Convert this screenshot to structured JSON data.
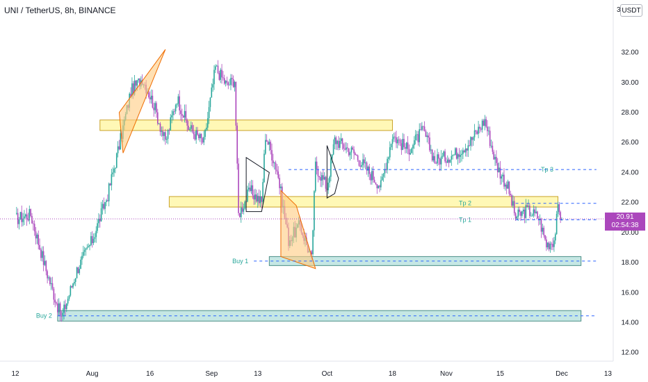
{
  "header": {
    "title": "UNI / TetherUS, 8h, BINANCE"
  },
  "price_scale": {
    "currency": "USDT",
    "prefix": "3"
  },
  "last_price": {
    "value": "20.91",
    "countdown": "02:54:38"
  },
  "colors": {
    "bull": "#26a69a",
    "bear": "#ab47bc",
    "zone_yellow": "#fff59d",
    "zone_teal": "#b2dfdb",
    "target_line": "#2962ff",
    "triangle_fill": "#ffcc80",
    "triangle_stroke": "#ef6c00"
  },
  "chart_data": {
    "type": "candlestick",
    "y_range": [
      11.8,
      34.2
    ],
    "y_ticks": [
      "32.00",
      "30.00",
      "28.00",
      "26.00",
      "24.00",
      "22.00",
      "20.00",
      "18.00",
      "16.00",
      "14.00",
      "12.00"
    ],
    "x_tick_labels": [
      "12",
      "Aug",
      "16",
      "Sep",
      "13",
      "Oct",
      "18",
      "Nov",
      "15",
      "Dec",
      "13"
    ],
    "anchors": [
      {
        "date": "Jul 12",
        "price": 20.9
      },
      {
        "date": "Jul 16",
        "price": 21.2
      },
      {
        "date": "Jul 20",
        "price": 17.5
      },
      {
        "date": "Jul 24",
        "price": 14.3
      },
      {
        "date": "Jul 28",
        "price": 17.5
      },
      {
        "date": "Aug 1",
        "price": 19.5
      },
      {
        "date": "Aug 5",
        "price": 22.5
      },
      {
        "date": "Aug 8",
        "price": 25.8
      },
      {
        "date": "Aug 11",
        "price": 29.4
      },
      {
        "date": "Aug 14",
        "price": 30.3
      },
      {
        "date": "Aug 17",
        "price": 28.5
      },
      {
        "date": "Aug 20",
        "price": 26.0
      },
      {
        "date": "Aug 23",
        "price": 29.0
      },
      {
        "date": "Aug 26",
        "price": 27.0
      },
      {
        "date": "Aug 30",
        "price": 26.0
      },
      {
        "date": "Sep 2",
        "price": 31.0
      },
      {
        "date": "Sep 5",
        "price": 29.8
      },
      {
        "date": "Sep 7",
        "price": 30.2
      },
      {
        "date": "Sep 8",
        "price": 21.2
      },
      {
        "date": "Sep 11",
        "price": 22.8
      },
      {
        "date": "Sep 14",
        "price": 22.0
      },
      {
        "date": "Sep 15",
        "price": 26.5
      },
      {
        "date": "Sep 18",
        "price": 24.2
      },
      {
        "date": "Sep 21",
        "price": 19.5
      },
      {
        "date": "Sep 24",
        "price": 20.5
      },
      {
        "date": "Sep 27",
        "price": 18.2
      },
      {
        "date": "Sep 28",
        "price": 24.5
      },
      {
        "date": "Oct 1",
        "price": 23.0
      },
      {
        "date": "Oct 3",
        "price": 26.2
      },
      {
        "date": "Oct 8",
        "price": 25.3
      },
      {
        "date": "Oct 12",
        "price": 24.0
      },
      {
        "date": "Oct 15",
        "price": 23.1
      },
      {
        "date": "Oct 18",
        "price": 26.5
      },
      {
        "date": "Oct 22",
        "price": 25.5
      },
      {
        "date": "Oct 26",
        "price": 26.8
      },
      {
        "date": "Oct 29",
        "price": 24.8
      },
      {
        "date": "Nov 3",
        "price": 25.2
      },
      {
        "date": "Nov 7",
        "price": 26.0
      },
      {
        "date": "Nov 11",
        "price": 27.5
      },
      {
        "date": "Nov 14",
        "price": 24.5
      },
      {
        "date": "Nov 17",
        "price": 23.0
      },
      {
        "date": "Nov 19",
        "price": 21.0
      },
      {
        "date": "Nov 22",
        "price": 21.5
      },
      {
        "date": "Nov 25",
        "price": 21.0
      },
      {
        "date": "Nov 27",
        "price": 19.2
      },
      {
        "date": "Nov 29",
        "price": 19.5
      },
      {
        "date": "Nov 30",
        "price": 21.5
      },
      {
        "date": "Dec 1",
        "price": 20.91
      }
    ],
    "zones": [
      {
        "kind": "resistance",
        "from": "Aug 3",
        "to": "Oct 18",
        "low": 26.8,
        "high": 27.5
      },
      {
        "kind": "resistance",
        "from": "Aug 21",
        "to": "Nov 30",
        "low": 21.7,
        "high": 22.4
      },
      {
        "kind": "support",
        "from": "Sep 16",
        "to": "Dec 6",
        "low": 17.8,
        "high": 18.4
      },
      {
        "kind": "support",
        "from": "Jul 23",
        "to": "Dec 6",
        "low": 14.1,
        "high": 14.8
      }
    ],
    "levels": [
      {
        "label": "Tp 3",
        "price": 24.2,
        "from": "Sep 21",
        "to": "Dec 10"
      },
      {
        "label": "Tp 2",
        "price": 21.95,
        "from": "Nov 19",
        "to": "Dec 10"
      },
      {
        "label": "Tp 1",
        "price": 20.85,
        "from": "Nov 19",
        "to": "Dec 10"
      },
      {
        "label": "Buy 1",
        "price": 18.1,
        "from": "Sep 12",
        "to": "Dec 10"
      },
      {
        "label": "Buy 2",
        "price": 14.45,
        "from": "Jul 23",
        "to": "Dec 10"
      }
    ],
    "current_price": 20.91
  }
}
